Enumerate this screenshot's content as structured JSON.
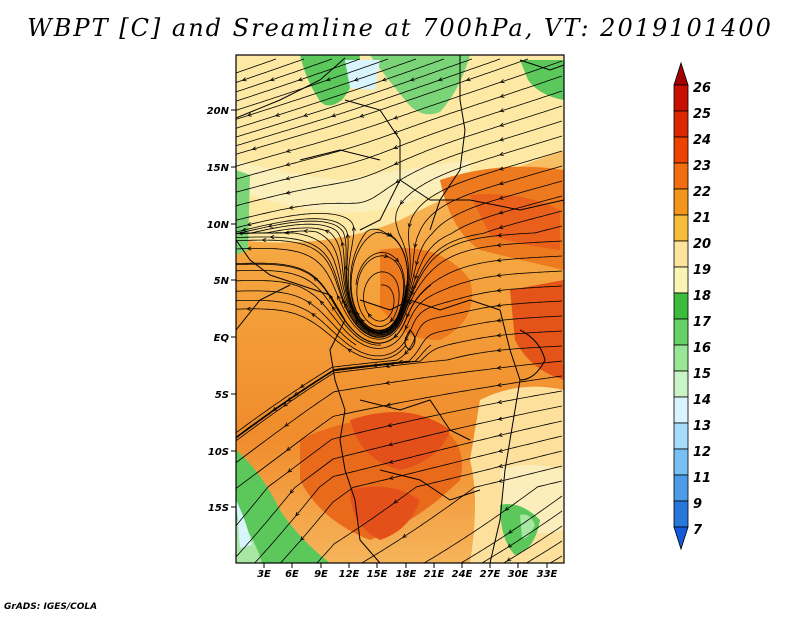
{
  "title": "WBPT [C] and Sreamline at 700hPa, VT: 2019101400",
  "credit": "GrADS: IGES/COLA",
  "map": {
    "lat_labels": [
      "20N",
      "15N",
      "10N",
      "5N",
      "EQ",
      "5S",
      "10S",
      "15S"
    ],
    "lon_labels": [
      "3E",
      "6E",
      "9E",
      "12E",
      "15E",
      "18E",
      "21E",
      "24E",
      "27E",
      "30E",
      "33E"
    ]
  },
  "colorbar": {
    "labels": [
      "26",
      "25",
      "24",
      "23",
      "22",
      "21",
      "20",
      "19",
      "18",
      "17",
      "16",
      "15",
      "14",
      "13",
      "12",
      "11",
      "9",
      "7"
    ],
    "colors": [
      "#a50000",
      "#c81000",
      "#dc2800",
      "#ec4400",
      "#f06e10",
      "#f4961c",
      "#f8bc3c",
      "#fde49c",
      "#f8f4b4",
      "#3cbc3c",
      "#64d264",
      "#98e696",
      "#c8f4c8",
      "#d8f4fc",
      "#a8dcfc",
      "#78c0f4",
      "#4c9ce8",
      "#2878dc",
      "#145adc"
    ]
  }
}
